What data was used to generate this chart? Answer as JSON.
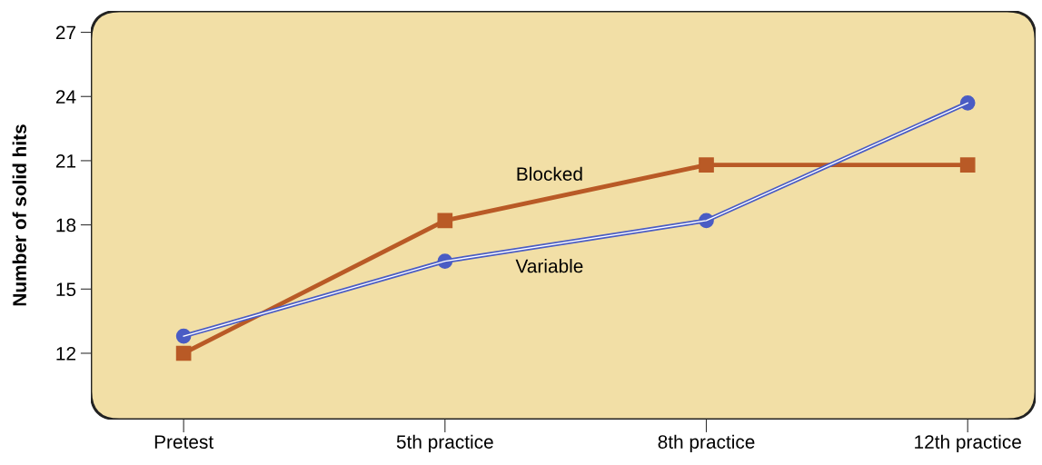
{
  "chart_data": {
    "type": "line",
    "ylabel": "Number of solid hits",
    "categories": [
      "Pretest",
      "5th practice",
      "8th practice",
      "12th practice"
    ],
    "series": [
      {
        "name": "Blocked",
        "color": "#b95a26",
        "marker": "square",
        "values": [
          12.0,
          18.2,
          20.8,
          20.8
        ]
      },
      {
        "name": "Variable",
        "color": "#4a5cc4",
        "marker": "circle",
        "values": [
          12.8,
          16.3,
          18.2,
          23.7
        ]
      }
    ],
    "ylim": [
      8.9,
      28
    ],
    "yticks": [
      12,
      15,
      18,
      21,
      24,
      27
    ],
    "grid": false,
    "legend": false
  }
}
